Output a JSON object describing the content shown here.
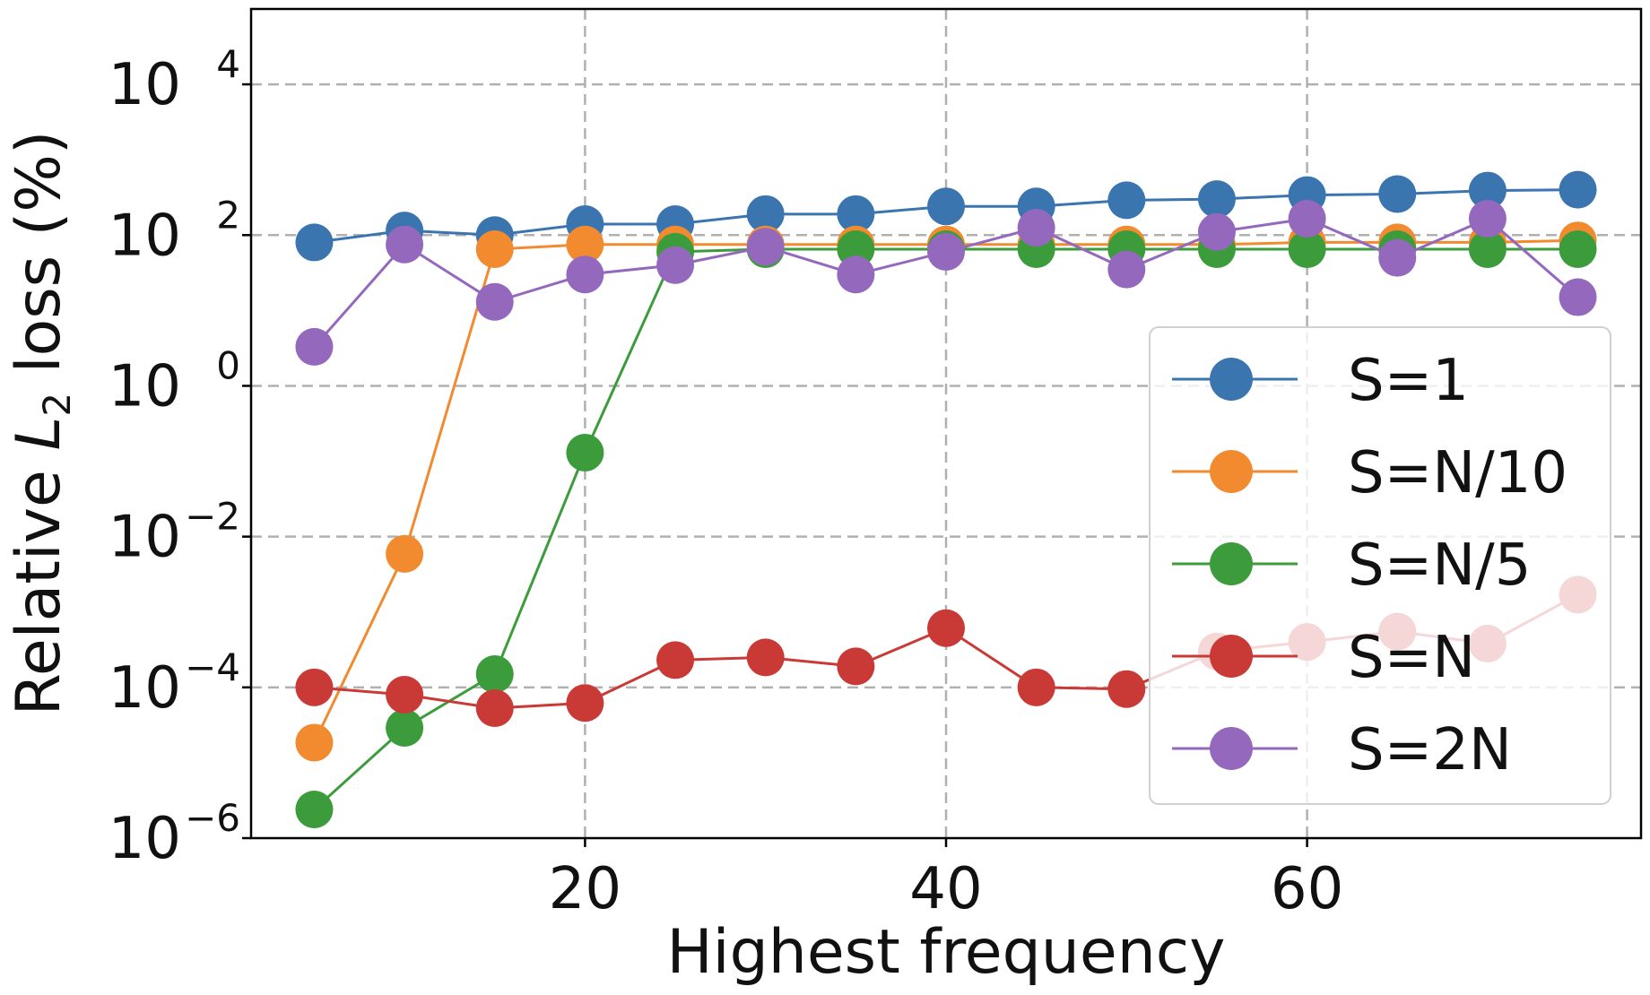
{
  "chart_data": {
    "type": "line",
    "title": "",
    "xlabel": "Highest frequency",
    "ylabel": {
      "prefix": "Relative ",
      "symbol": "L",
      "subscript": "2",
      "suffix": " loss (%)"
    },
    "yscale": "log",
    "xlim": [
      1.5,
      78.5
    ],
    "ylim_log10": [
      -6,
      5
    ],
    "grid": true,
    "legend_position": "lower-right",
    "x_ticks": [
      {
        "value": 20,
        "label": "20"
      },
      {
        "value": 40,
        "label": "40"
      },
      {
        "value": 60,
        "label": "60"
      }
    ],
    "y_ticks": [
      {
        "exp": 4,
        "base": "10",
        "sup": "4"
      },
      {
        "exp": 2,
        "base": "10",
        "sup": "2"
      },
      {
        "exp": 0,
        "base": "10",
        "sup": "0"
      },
      {
        "exp": -2,
        "base": "10",
        "sup": "−2"
      },
      {
        "exp": -4,
        "base": "10",
        "sup": "−4"
      },
      {
        "exp": -6,
        "base": "10",
        "sup": "−6"
      }
    ],
    "x": [
      5,
      10,
      15,
      20,
      25,
      30,
      35,
      40,
      45,
      50,
      55,
      60,
      65,
      70,
      75
    ],
    "series": [
      {
        "name": "S=1",
        "color": "#3a75b0",
        "values": [
          80,
          115,
          100,
          140,
          140,
          190,
          190,
          240,
          240,
          290,
          300,
          340,
          350,
          390,
          400
        ]
      },
      {
        "name": "S=N/10",
        "color": "#f28a30",
        "values": [
          1.85e-05,
          0.0059,
          65,
          75,
          75,
          75,
          75,
          75,
          75,
          75,
          75,
          80,
          80,
          80,
          85
        ]
      },
      {
        "name": "S=N/5",
        "color": "#3c9c3c",
        "values": [
          2.4e-06,
          2.9e-05,
          0.00015,
          0.13,
          60,
          65,
          65,
          65,
          65,
          65,
          65,
          65,
          65,
          65,
          65
        ]
      },
      {
        "name": "S=N",
        "color": "#c93a36",
        "values": [
          0.0001,
          8e-05,
          5.3e-05,
          6.2e-05,
          0.00023,
          0.00025,
          0.00019,
          0.00061,
          0.0001,
          9.5e-05,
          0.0003,
          0.0004,
          0.00055,
          0.00038,
          0.0017
        ]
      },
      {
        "name": "S=2N",
        "color": "#9469bd",
        "values": [
          3.3,
          75,
          13,
          30,
          40,
          70,
          30,
          60,
          125,
          35,
          110,
          165,
          50,
          165,
          15
        ]
      }
    ]
  }
}
